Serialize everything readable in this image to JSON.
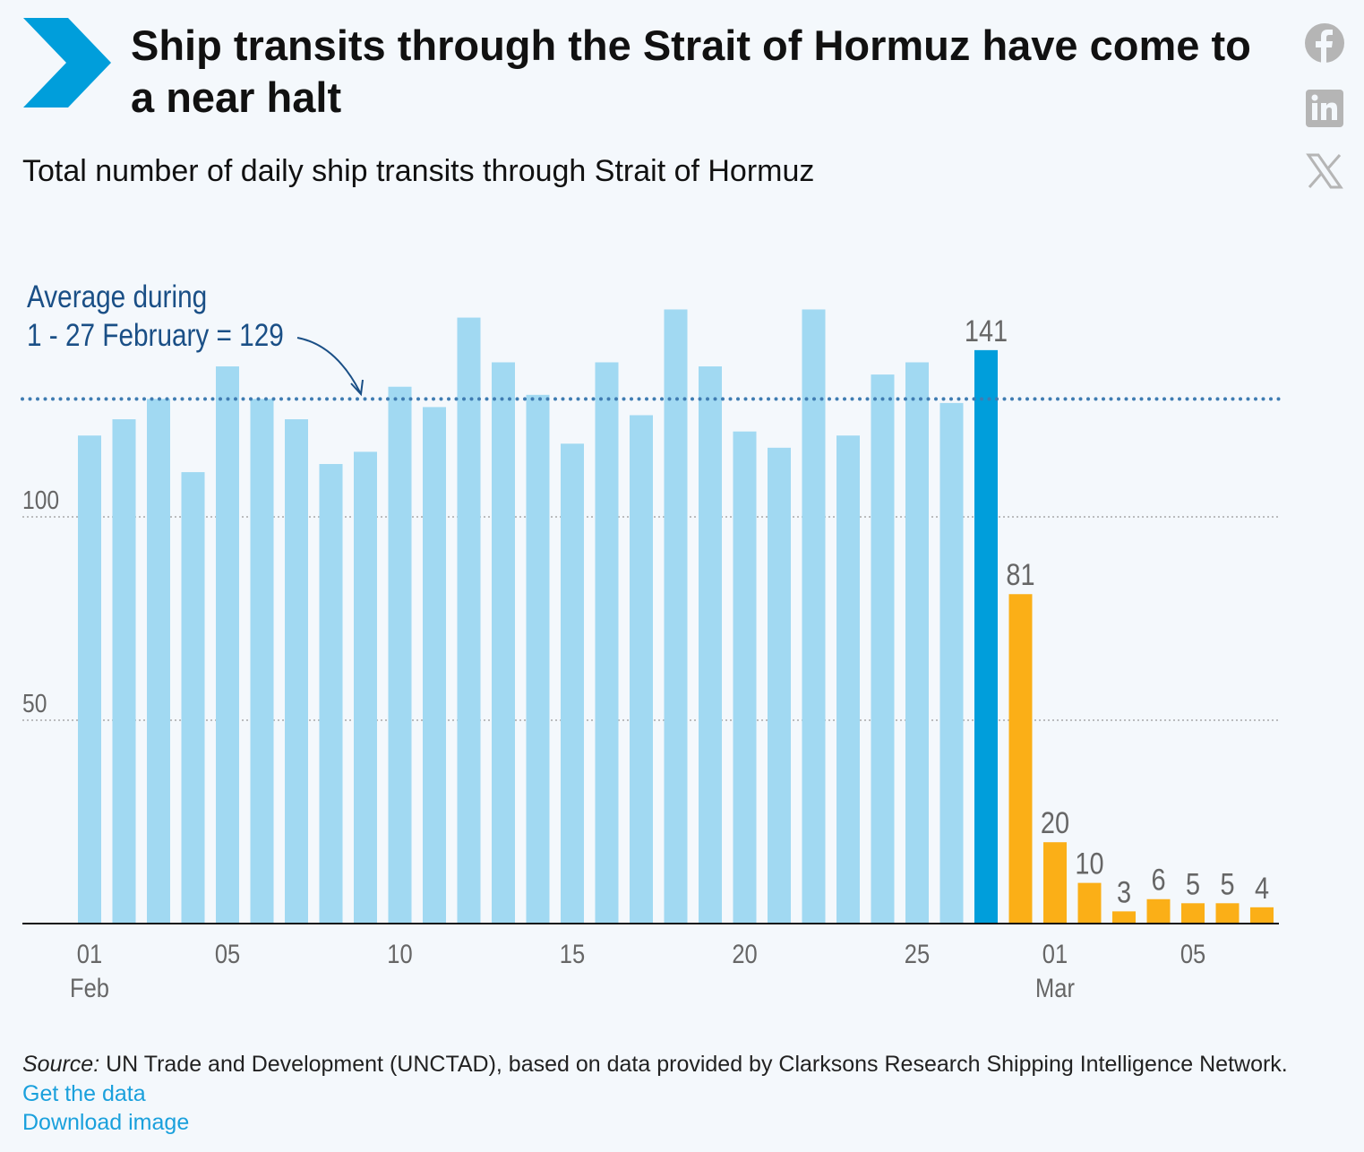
{
  "header": {
    "title": "Ship transits through the Strait of Hormuz have come to a near halt",
    "subtitle": "Total number of daily ship transits through Strait of Hormuz",
    "social": [
      "facebook-icon",
      "linkedin-icon",
      "x-icon"
    ]
  },
  "footer": {
    "source_label": "Source:",
    "source_text": " UN Trade and Development (UNCTAD), based on data provided by Clarksons Research Shipping Intelligence Network.",
    "get_data": "Get the data",
    "download_image": "Download image"
  },
  "colors": {
    "feb": "#a1d9f2",
    "highlight": "#009edb",
    "mar": "#fbaf17",
    "avg_line": "#3f7cb2",
    "label": "#666666"
  },
  "chart_data": {
    "type": "bar",
    "title": "Total number of daily ship transits through Strait of Hormuz",
    "xlabel": "",
    "ylabel": "",
    "ylim": [
      0,
      160
    ],
    "yticks": [
      50,
      100
    ],
    "grid": true,
    "categories": [
      "Feb 01",
      "Feb 02",
      "Feb 03",
      "Feb 04",
      "Feb 05",
      "Feb 06",
      "Feb 07",
      "Feb 08",
      "Feb 09",
      "Feb 10",
      "Feb 11",
      "Feb 12",
      "Feb 13",
      "Feb 14",
      "Feb 15",
      "Feb 16",
      "Feb 17",
      "Feb 18",
      "Feb 19",
      "Feb 20",
      "Feb 21",
      "Feb 22",
      "Feb 23",
      "Feb 24",
      "Feb 25",
      "Feb 26",
      "Feb 27",
      "Feb 28",
      "Mar 01",
      "Mar 02",
      "Mar 03",
      "Mar 04",
      "Mar 05",
      "Mar 06",
      "Mar 07"
    ],
    "values": [
      120,
      124,
      129,
      111,
      137,
      129,
      124,
      113,
      116,
      132,
      127,
      149,
      138,
      130,
      118,
      138,
      125,
      151,
      137,
      121,
      117,
      151,
      120,
      135,
      138,
      128,
      141,
      81,
      20,
      10,
      3,
      6,
      5,
      5,
      4
    ],
    "labeled_indices": [
      26,
      27,
      28,
      29,
      30,
      31,
      32,
      33,
      34
    ],
    "highlight_index": 26,
    "orange_from_index": 27,
    "xticks": [
      {
        "index": 0,
        "day": "01",
        "month": "Feb"
      },
      {
        "index": 4,
        "day": "05"
      },
      {
        "index": 9,
        "day": "10"
      },
      {
        "index": 14,
        "day": "15"
      },
      {
        "index": 19,
        "day": "20"
      },
      {
        "index": 24,
        "day": "25"
      },
      {
        "index": 28,
        "day": "01",
        "month": "Mar"
      },
      {
        "index": 32,
        "day": "05"
      }
    ],
    "average": {
      "value": 129,
      "label_line1": "Average during",
      "label_line2": "1 - 27 February = 129"
    }
  }
}
